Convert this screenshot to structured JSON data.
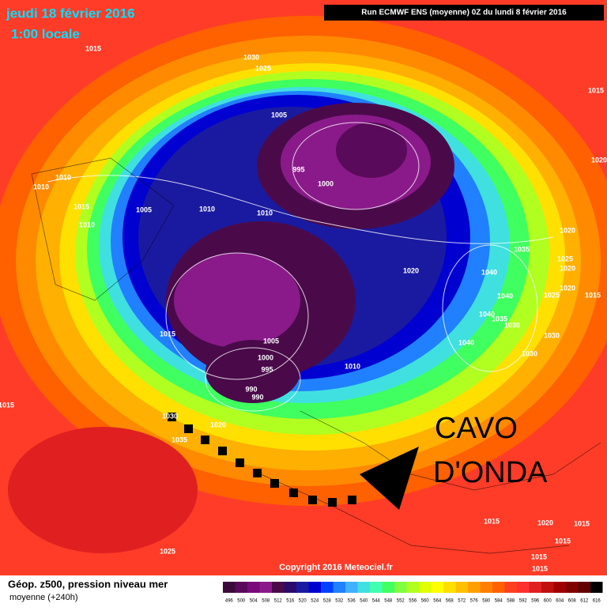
{
  "header": {
    "date": "jeudi 18 février 2016",
    "time": "1:00 locale",
    "run": "Run ECMWF ENS (moyenne) 0Z du lundi 8 février 2016"
  },
  "annotation": {
    "line1": "CAVO",
    "line2": "D'ONDA"
  },
  "copyright": "Copyright 2016 Meteociel.fr",
  "footer": {
    "line1": "Géop. z500, pression niveau mer",
    "line2": "moyenne  (+240h)"
  },
  "isobars": [
    1015,
    1030,
    1025,
    1005,
    995,
    1000,
    1010,
    1010,
    1005,
    1010,
    1010,
    1015,
    1010,
    1020,
    1035,
    1020,
    1025,
    1020,
    1040,
    1040,
    1020,
    1025,
    1015,
    1040,
    1035,
    1030,
    1040,
    1030,
    1030,
    1015,
    1005,
    1000,
    995,
    990,
    990,
    1010,
    1020,
    1035,
    1030,
    1015,
    1015,
    1020,
    1015,
    1015,
    1015,
    1015,
    1025,
    1015,
    1020
  ],
  "scale": [
    {
      "value": 496,
      "color": "#3a0a3a"
    },
    {
      "value": 500,
      "color": "#5a0a5a"
    },
    {
      "value": 504,
      "color": "#7a0a7a"
    },
    {
      "value": 508,
      "color": "#8a1a8a"
    },
    {
      "value": 512,
      "color": "#4a0a4a"
    },
    {
      "value": 516,
      "color": "#2a0a6a"
    },
    {
      "value": 520,
      "color": "#1a1aa0"
    },
    {
      "value": 524,
      "color": "#0000d0"
    },
    {
      "value": 528,
      "color": "#0040ff"
    },
    {
      "value": 532,
      "color": "#2080ff"
    },
    {
      "value": 536,
      "color": "#40b0ff"
    },
    {
      "value": 540,
      "color": "#40e0e0"
    },
    {
      "value": 544,
      "color": "#40ffb0"
    },
    {
      "value": 548,
      "color": "#40ff60"
    },
    {
      "value": 552,
      "color": "#80ff40"
    },
    {
      "value": 556,
      "color": "#b0ff20"
    },
    {
      "value": 560,
      "color": "#e0ff00"
    },
    {
      "value": 564,
      "color": "#ffff00"
    },
    {
      "value": 568,
      "color": "#ffe000"
    },
    {
      "value": 572,
      "color": "#ffc000"
    },
    {
      "value": 576,
      "color": "#ffa000"
    },
    {
      "value": 580,
      "color": "#ff8000"
    },
    {
      "value": 584,
      "color": "#ff6000"
    },
    {
      "value": 588,
      "color": "#ff4020"
    },
    {
      "value": 592,
      "color": "#ff3030"
    },
    {
      "value": 596,
      "color": "#e02020"
    },
    {
      "value": 600,
      "color": "#c01010"
    },
    {
      "value": 604,
      "color": "#a00000"
    },
    {
      "value": 608,
      "color": "#800000"
    },
    {
      "value": 612,
      "color": "#600000"
    },
    {
      "value": 616,
      "color": "#000000"
    }
  ]
}
